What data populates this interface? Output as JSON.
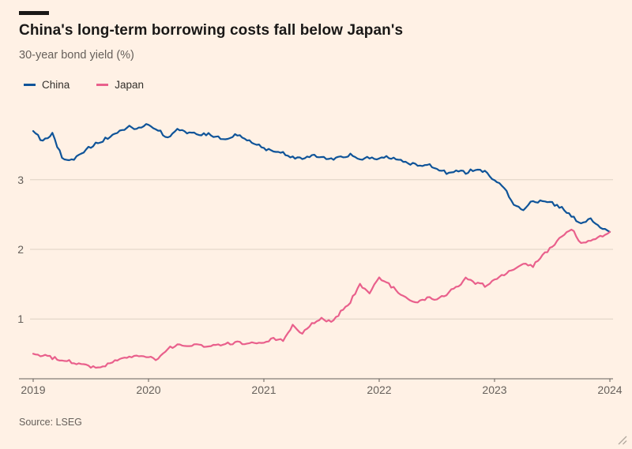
{
  "page": {
    "title": "China's long-term borrowing costs fall below Japan's",
    "subtitle": "30-year bond yield (%)",
    "source": "Source: LSEG",
    "background": "#fff1e5",
    "kicker_bar_color": "#1a1817"
  },
  "chart_data": {
    "type": "line",
    "title": "China's long-term borrowing costs fall below Japan's",
    "ylabel": "30-year bond yield (%)",
    "xlabel": "",
    "x_unit": "month",
    "x_start": "2019-01",
    "x_end": "2024-01",
    "x_tick_labels": [
      "2019",
      "2020",
      "2021",
      "2022",
      "2023",
      "2024"
    ],
    "y_tick_labels": [
      1,
      2,
      3
    ],
    "ylim": [
      0.14,
      4.2
    ],
    "grid": "horizontal-y",
    "legend_position": "top-left",
    "colors": {
      "grid": "#ddd1c4",
      "axis": "#66605b",
      "text": "#66605b"
    },
    "series": [
      {
        "name": "China",
        "color": "#0f5499",
        "values": [
          3.7,
          3.55,
          3.66,
          3.32,
          3.28,
          3.38,
          3.48,
          3.55,
          3.62,
          3.7,
          3.76,
          3.74,
          3.8,
          3.72,
          3.6,
          3.74,
          3.68,
          3.65,
          3.66,
          3.62,
          3.58,
          3.64,
          3.6,
          3.52,
          3.45,
          3.42,
          3.38,
          3.32,
          3.3,
          3.36,
          3.33,
          3.3,
          3.32,
          3.36,
          3.3,
          3.32,
          3.3,
          3.33,
          3.3,
          3.25,
          3.2,
          3.23,
          3.17,
          3.1,
          3.13,
          3.1,
          3.16,
          3.12,
          2.98,
          2.9,
          2.62,
          2.58,
          2.7,
          2.68,
          2.66,
          2.6,
          2.48,
          2.36,
          2.44,
          2.3,
          2.25
        ]
      },
      {
        "name": "Japan",
        "color": "#e9608c",
        "values": [
          0.5,
          0.47,
          0.44,
          0.41,
          0.38,
          0.35,
          0.32,
          0.3,
          0.36,
          0.42,
          0.46,
          0.48,
          0.45,
          0.42,
          0.58,
          0.62,
          0.6,
          0.63,
          0.61,
          0.63,
          0.64,
          0.66,
          0.65,
          0.64,
          0.66,
          0.72,
          0.7,
          0.9,
          0.8,
          0.92,
          1.0,
          0.95,
          1.1,
          1.25,
          1.5,
          1.38,
          1.58,
          1.5,
          1.38,
          1.28,
          1.24,
          1.3,
          1.28,
          1.36,
          1.45,
          1.58,
          1.52,
          1.48,
          1.56,
          1.64,
          1.72,
          1.8,
          1.76,
          1.9,
          2.05,
          2.18,
          2.3,
          2.08,
          2.12,
          2.18,
          2.25
        ]
      }
    ]
  }
}
